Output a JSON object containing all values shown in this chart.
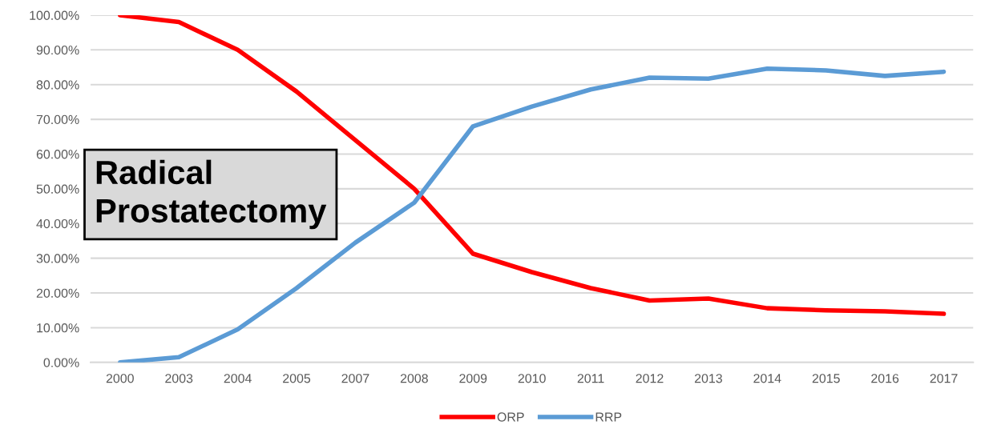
{
  "chart_data": {
    "type": "line",
    "categories": [
      "2000",
      "2003",
      "2004",
      "2005",
      "2007",
      "2008",
      "2009",
      "2010",
      "2011",
      "2012",
      "2013",
      "2014",
      "2015",
      "2016",
      "2017"
    ],
    "series": [
      {
        "name": "ORP",
        "color": "#ff0000",
        "values": [
          100,
          98,
          90,
          78,
          64,
          50,
          31.3,
          26,
          21.4,
          17.8,
          18.4,
          15.6,
          15,
          14.7,
          14
        ]
      },
      {
        "name": "RRP",
        "color": "#5b9bd5",
        "values": [
          0,
          1.5,
          9.5,
          21.4,
          34.5,
          46,
          68,
          73.7,
          78.6,
          82,
          81.7,
          84.6,
          84.1,
          82.5,
          83.7
        ]
      }
    ],
    "ylim": [
      0,
      100
    ],
    "yticks": [
      {
        "value": 0,
        "label": "0.00%"
      },
      {
        "value": 10,
        "label": "10.00%"
      },
      {
        "value": 20,
        "label": "20.00%"
      },
      {
        "value": 30,
        "label": "30.00%"
      },
      {
        "value": 40,
        "label": "40.00%"
      },
      {
        "value": 50,
        "label": "50.00%"
      },
      {
        "value": 60,
        "label": "60.00%"
      },
      {
        "value": 70,
        "label": "70.00%"
      },
      {
        "value": 80,
        "label": "80.00%"
      },
      {
        "value": 90,
        "label": "90.00%"
      },
      {
        "value": 100,
        "label": "100.00%"
      }
    ],
    "grid": "y",
    "legend": "bottom",
    "marker": "none",
    "line_style": "solid",
    "annotations": [
      "Radical\nProstatectomy"
    ]
  }
}
